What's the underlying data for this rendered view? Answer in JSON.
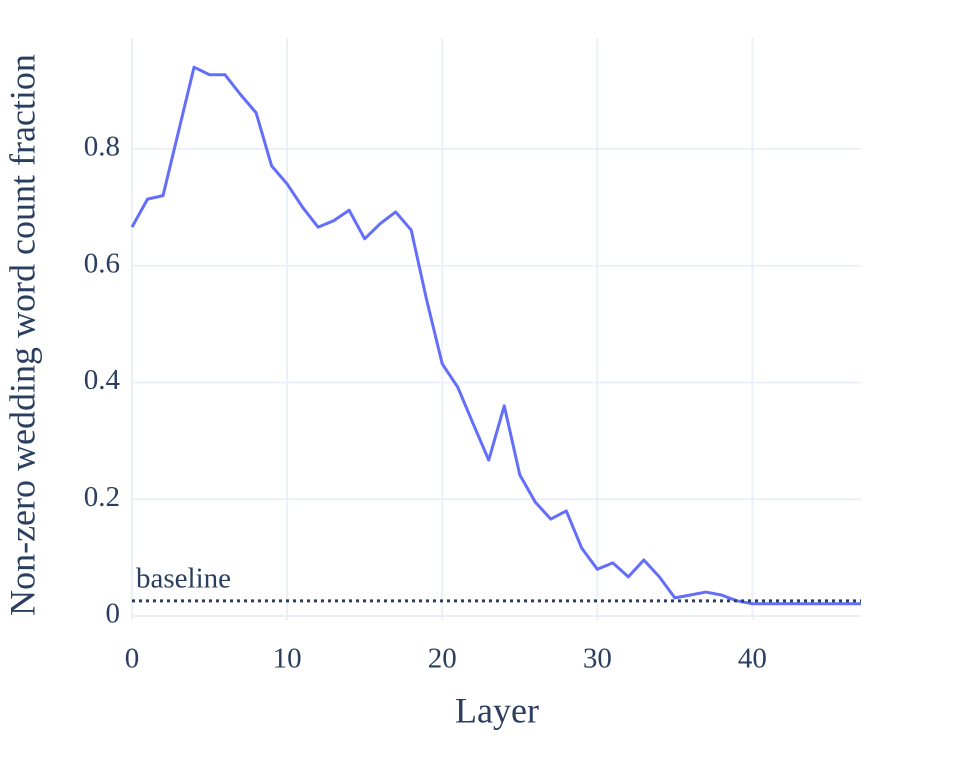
{
  "chart_data": {
    "type": "line",
    "x_label": "Layer",
    "y_label": "Non-zero wedding word count fraction",
    "x": [
      0,
      1,
      2,
      3,
      4,
      5,
      6,
      7,
      8,
      9,
      10,
      11,
      12,
      13,
      14,
      15,
      16,
      17,
      18,
      19,
      20,
      21,
      22,
      23,
      24,
      25,
      26,
      27,
      28,
      29,
      30,
      31,
      32,
      33,
      34,
      35,
      36,
      37,
      38,
      39,
      40,
      41,
      42,
      43,
      44,
      45,
      46,
      47
    ],
    "series": [
      {
        "color": "#636efa",
        "values": [
          0.666,
          0.714,
          0.72,
          0.83,
          0.94,
          0.927,
          0.927,
          0.893,
          0.862,
          0.771,
          0.74,
          0.7,
          0.666,
          0.677,
          0.695,
          0.646,
          0.672,
          0.692,
          0.661,
          0.541,
          0.432,
          0.392,
          0.329,
          0.267,
          0.36,
          0.242,
          0.195,
          0.166,
          0.18,
          0.116,
          0.08,
          0.091,
          0.067,
          0.096,
          0.067,
          0.031,
          0.036,
          0.041,
          0.036,
          0.026,
          0.021,
          0.021,
          0.021,
          0.021,
          0.021,
          0.021,
          0.021,
          0.021
        ]
      }
    ],
    "baseline": {
      "value": 0.026,
      "label": "baseline",
      "color": "#2a3f5f"
    },
    "xlim": [
      0,
      47
    ],
    "ylim": [
      0,
      0.99
    ],
    "xticks": [
      0,
      10,
      20,
      30,
      40
    ],
    "yticks": [
      0,
      0.2,
      0.4,
      0.6,
      0.8
    ],
    "grid": true
  }
}
